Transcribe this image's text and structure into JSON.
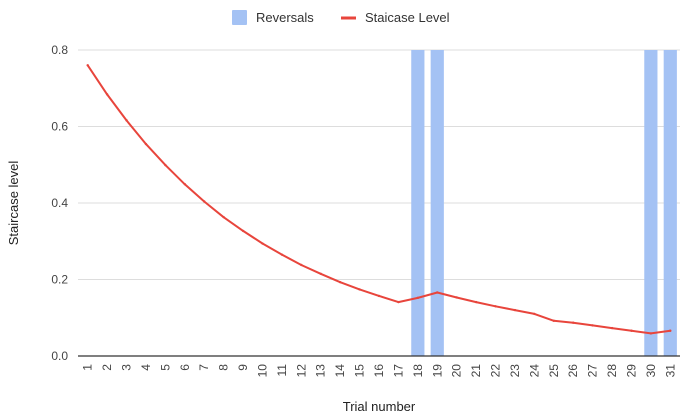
{
  "chart_data": {
    "type": "bar",
    "xlabel": "Trial number",
    "ylabel": "Staircase level",
    "ylim": [
      0,
      0.8
    ],
    "yticks": [
      "0.0",
      "0.2",
      "0.4",
      "0.6",
      "0.8"
    ],
    "yticks_values": [
      0,
      0.2,
      0.4,
      0.6,
      0.8
    ],
    "grid": true,
    "legend_position": "top",
    "categories": [
      "1",
      "2",
      "3",
      "4",
      "5",
      "6",
      "7",
      "8",
      "9",
      "10",
      "11",
      "12",
      "13",
      "14",
      "15",
      "16",
      "17",
      "18",
      "19",
      "20",
      "21",
      "22",
      "23",
      "24",
      "25",
      "26",
      "27",
      "28",
      "29",
      "30",
      "31"
    ],
    "series": [
      {
        "name": "Reversals",
        "type": "bar",
        "color": "#a4c2f4",
        "values": [
          0,
          0,
          0,
          0,
          0,
          0,
          0,
          0,
          0,
          0,
          0,
          0,
          0,
          0,
          0,
          0,
          0,
          0.8,
          0.8,
          0,
          0,
          0,
          0,
          0,
          0,
          0,
          0,
          0,
          0,
          0.8,
          0.8
        ]
      },
      {
        "name": "Staicase Level",
        "type": "line",
        "color": "#e8453c",
        "values": [
          0.76,
          0.684,
          0.616,
          0.554,
          0.499,
          0.449,
          0.404,
          0.363,
          0.327,
          0.294,
          0.265,
          0.238,
          0.215,
          0.193,
          0.174,
          0.157,
          0.141,
          0.152,
          0.166,
          0.153,
          0.141,
          0.13,
          0.12,
          0.11,
          0.092,
          0.087,
          0.08,
          0.073,
          0.066,
          0.059,
          0.066
        ]
      }
    ]
  }
}
